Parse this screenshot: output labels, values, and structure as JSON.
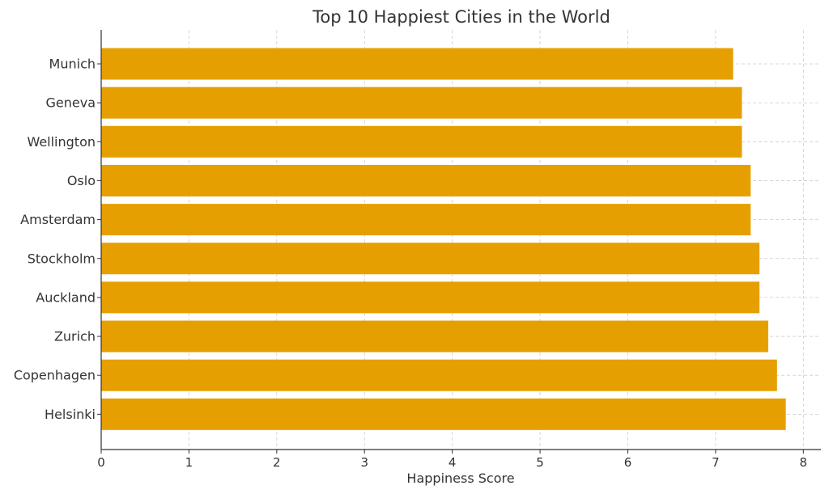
{
  "chart_data": {
    "type": "bar",
    "orientation": "horizontal",
    "title": "Top 10 Happiest Cities in the World",
    "xlabel": "Happiness Score",
    "ylabel": "",
    "categories": [
      "Munich",
      "Geneva",
      "Wellington",
      "Oslo",
      "Amsterdam",
      "Stockholm",
      "Auckland",
      "Zurich",
      "Copenhagen",
      "Helsinki"
    ],
    "values": [
      7.2,
      7.3,
      7.3,
      7.4,
      7.4,
      7.5,
      7.5,
      7.6,
      7.7,
      7.8
    ],
    "xlim": [
      0,
      8.2
    ],
    "xticks": [
      "0",
      "1",
      "2",
      "3",
      "4",
      "5",
      "6",
      "7",
      "8"
    ],
    "grid": true,
    "bar_color": "#E69F00"
  }
}
